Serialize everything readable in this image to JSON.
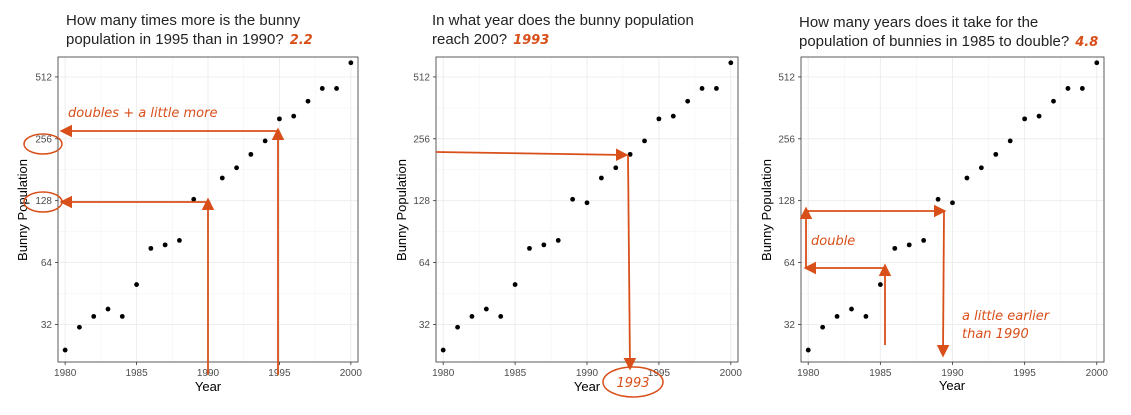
{
  "colors": {
    "accent": "#d94f1a",
    "point": "#000000"
  },
  "chart_data": [
    {
      "type": "scatter",
      "title": "How many times more is the bunny population in 1995 than in 1990?",
      "answer": "2.2",
      "xlabel": "Year",
      "ylabel": "Bunny Population",
      "yscale": "log2",
      "xlim": [
        1979.5,
        2000.5
      ],
      "ylim": [
        21,
        640
      ],
      "xticks": [
        "1980",
        "1985",
        "1990",
        "1995",
        "2000"
      ],
      "yticks": [
        "32",
        "64",
        "128",
        "256",
        "512"
      ],
      "x": [
        1980,
        1981,
        1982,
        1983,
        1984,
        1985,
        1986,
        1987,
        1988,
        1989,
        1990,
        1991,
        1992,
        1993,
        1994,
        1995,
        1996,
        1997,
        1998,
        1999,
        2000
      ],
      "y": [
        24,
        31,
        35,
        38,
        35,
        50,
        75,
        78,
        82,
        130,
        125,
        165,
        185,
        215,
        250,
        320,
        330,
        390,
        450,
        450,
        600
      ],
      "annotations": [
        "doubles + a little more"
      ],
      "circled_ticks": [
        "128",
        "256"
      ]
    },
    {
      "type": "scatter",
      "title": "In what year does the bunny population reach 200?",
      "answer": "1993",
      "xlabel": "Year",
      "ylabel": "Bunny Population",
      "yscale": "log2",
      "xlim": [
        1979.5,
        2000.5
      ],
      "ylim": [
        21,
        640
      ],
      "xticks": [
        "1980",
        "1985",
        "1990",
        "1995",
        "2000"
      ],
      "yticks": [
        "32",
        "64",
        "128",
        "256",
        "512"
      ],
      "x": [
        1980,
        1981,
        1982,
        1983,
        1984,
        1985,
        1986,
        1987,
        1988,
        1989,
        1990,
        1991,
        1992,
        1993,
        1994,
        1995,
        1996,
        1997,
        1998,
        1999,
        2000
      ],
      "y": [
        24,
        31,
        35,
        38,
        35,
        50,
        75,
        78,
        82,
        130,
        125,
        165,
        185,
        215,
        250,
        320,
        330,
        390,
        450,
        450,
        600
      ],
      "annotations": [
        "1993"
      ]
    },
    {
      "type": "scatter",
      "title": "How many years does it take for the population of bunnies in 1985 to double?",
      "answer": "4.8",
      "xlabel": "Year",
      "ylabel": "Bunny Population",
      "yscale": "log2",
      "xlim": [
        1979.5,
        2000.5
      ],
      "ylim": [
        21,
        640
      ],
      "xticks": [
        "1980",
        "1985",
        "1990",
        "1995",
        "2000"
      ],
      "yticks": [
        "32",
        "64",
        "128",
        "256",
        "512"
      ],
      "x": [
        1980,
        1981,
        1982,
        1983,
        1984,
        1985,
        1986,
        1987,
        1988,
        1989,
        1990,
        1991,
        1992,
        1993,
        1994,
        1995,
        1996,
        1997,
        1998,
        1999,
        2000
      ],
      "y": [
        24,
        31,
        35,
        38,
        35,
        50,
        75,
        78,
        82,
        130,
        125,
        165,
        185,
        215,
        250,
        320,
        330,
        390,
        450,
        450,
        600
      ],
      "annotations": [
        "double",
        "a little earlier",
        "than 1990"
      ]
    }
  ]
}
